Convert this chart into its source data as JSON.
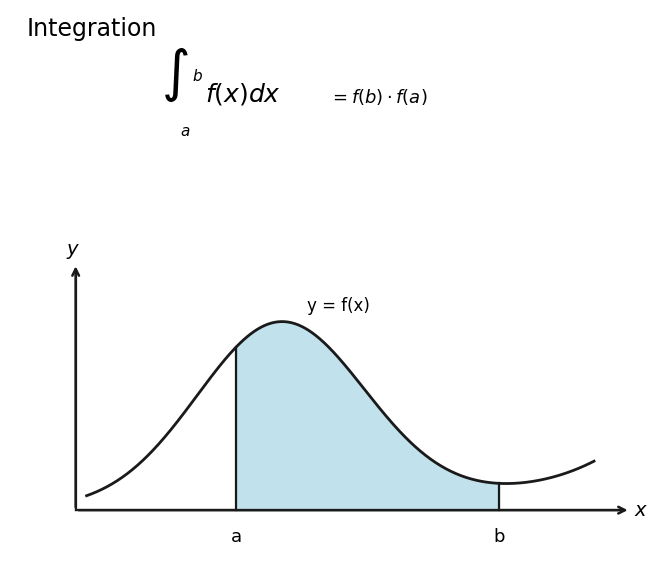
{
  "title": "Integration",
  "curve_label": "y = f(x)",
  "x_label": "x",
  "y_label": "y",
  "a_label": "a",
  "b_label": "b",
  "fill_color": "#add8e6",
  "fill_alpha": 0.75,
  "curve_color": "#1a1a1a",
  "axis_color": "#1a1a1a",
  "title_fontsize": 17,
  "label_fontsize": 13,
  "background_color": "#ffffff",
  "a_x": 2.2,
  "b_x": 5.8,
  "xlim": [
    -0.3,
    7.8
  ],
  "ylim": [
    -0.55,
    3.8
  ]
}
